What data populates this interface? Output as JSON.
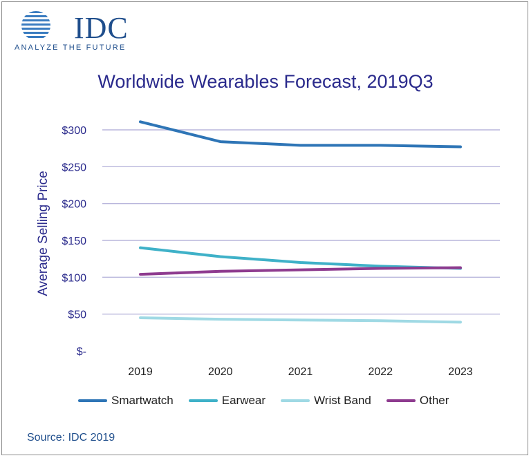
{
  "brand": {
    "name": "IDC",
    "tagline": "ANALYZE THE FUTURE",
    "color": "#1f4e8c"
  },
  "source": "Source: IDC 2019",
  "chart_data": {
    "type": "line",
    "title": "Worldwide Wearables Forecast, 2019Q3",
    "xlabel": "",
    "ylabel": "Average Selling Price",
    "x": [
      "2019",
      "2020",
      "2021",
      "2022",
      "2023"
    ],
    "yticks": [
      0,
      50,
      100,
      150,
      200,
      250,
      300
    ],
    "ytick_labels": [
      "$-",
      "$50",
      "$100",
      "$150",
      "$200",
      "$250",
      "$300"
    ],
    "ylim": [
      0,
      300
    ],
    "grid": true,
    "legend": "bottom",
    "series": [
      {
        "name": "Smartwatch",
        "color": "#2e75b6",
        "values": [
          311,
          284,
          279,
          279,
          277
        ]
      },
      {
        "name": "Earwear",
        "color": "#3fb1c8",
        "values": [
          140,
          128,
          120,
          115,
          112
        ]
      },
      {
        "name": "Wrist Band",
        "color": "#9fd9e4",
        "values": [
          45,
          43,
          42,
          41,
          39
        ]
      },
      {
        "name": "Other",
        "color": "#8e3b8f",
        "values": [
          104,
          108,
          110,
          112,
          113
        ]
      }
    ]
  }
}
